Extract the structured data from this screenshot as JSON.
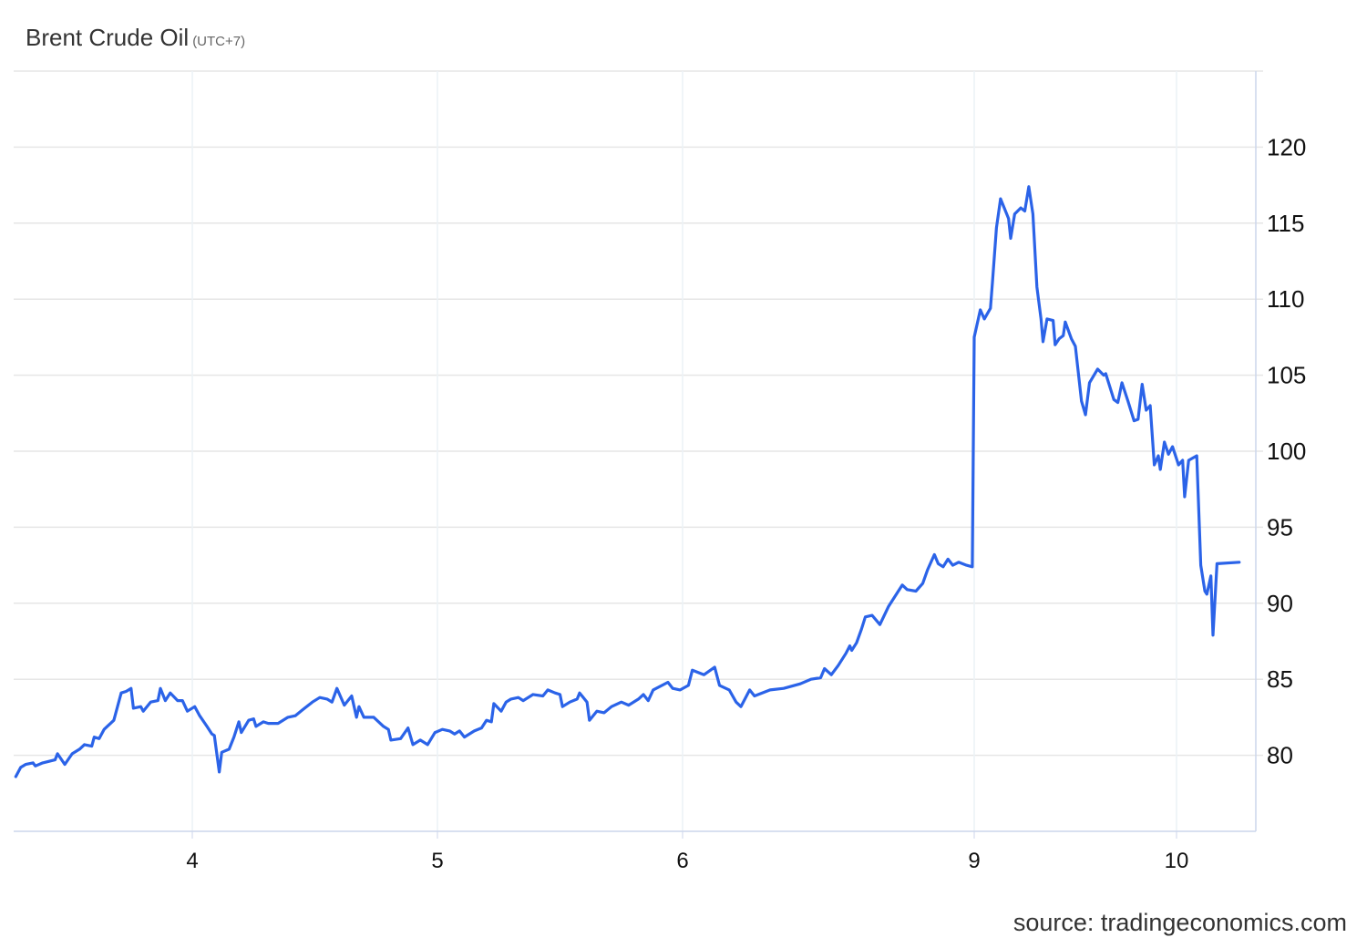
{
  "chart_data": {
    "type": "line",
    "title": "Brent Crude Oil",
    "subtitle": "(UTC+7)",
    "source": "source: tradingeconomics.com",
    "xlabel": "",
    "ylabel": "",
    "ylim": [
      75,
      125
    ],
    "y_ticks": [
      80,
      85,
      90,
      95,
      100,
      105,
      110,
      115,
      120
    ],
    "x_ticks": [
      {
        "label": "4",
        "value": 4
      },
      {
        "label": "5",
        "value": 5
      },
      {
        "label": "6",
        "value": 6
      },
      {
        "label": "9",
        "value": 9
      },
      {
        "label": "10",
        "value": 10
      }
    ],
    "grid": true,
    "y_axis_position": "right",
    "line_color": "#2b63e8",
    "series": [
      {
        "points": [
          [
            3.28,
            78.6
          ],
          [
            3.3,
            79.2
          ],
          [
            3.32,
            79.4
          ],
          [
            3.35,
            79.5
          ],
          [
            3.36,
            79.3
          ],
          [
            3.39,
            79.5
          ],
          [
            3.44,
            79.7
          ],
          [
            3.45,
            80.1
          ],
          [
            3.48,
            79.4
          ],
          [
            3.51,
            80.1
          ],
          [
            3.54,
            80.4
          ],
          [
            3.56,
            80.7
          ],
          [
            3.59,
            80.6
          ],
          [
            3.6,
            81.2
          ],
          [
            3.62,
            81.1
          ],
          [
            3.64,
            81.7
          ],
          [
            3.68,
            82.3
          ],
          [
            3.71,
            84.1
          ],
          [
            3.73,
            84.2
          ],
          [
            3.75,
            84.4
          ],
          [
            3.76,
            83.1
          ],
          [
            3.79,
            83.2
          ],
          [
            3.8,
            82.9
          ],
          [
            3.83,
            83.5
          ],
          [
            3.86,
            83.6
          ],
          [
            3.87,
            84.4
          ],
          [
            3.89,
            83.6
          ],
          [
            3.91,
            84.1
          ],
          [
            3.94,
            83.6
          ],
          [
            3.96,
            83.6
          ],
          [
            3.98,
            82.9
          ],
          [
            4.01,
            83.2
          ],
          [
            4.03,
            82.6
          ],
          [
            4.06,
            81.9
          ],
          [
            4.08,
            81.4
          ],
          [
            4.09,
            81.3
          ],
          [
            4.11,
            78.9
          ],
          [
            4.12,
            80.2
          ],
          [
            4.15,
            80.4
          ],
          [
            4.17,
            81.2
          ],
          [
            4.19,
            82.2
          ],
          [
            4.2,
            81.5
          ],
          [
            4.23,
            82.3
          ],
          [
            4.25,
            82.4
          ],
          [
            4.26,
            81.9
          ],
          [
            4.29,
            82.2
          ],
          [
            4.31,
            82.1
          ],
          [
            4.35,
            82.1
          ],
          [
            4.39,
            82.5
          ],
          [
            4.42,
            82.6
          ],
          [
            4.45,
            83.0
          ],
          [
            4.49,
            83.5
          ],
          [
            4.52,
            83.8
          ],
          [
            4.55,
            83.7
          ],
          [
            4.57,
            83.5
          ],
          [
            4.59,
            84.4
          ],
          [
            4.62,
            83.3
          ],
          [
            4.65,
            83.9
          ],
          [
            4.67,
            82.5
          ],
          [
            4.68,
            83.2
          ],
          [
            4.7,
            82.5
          ],
          [
            4.74,
            82.5
          ],
          [
            4.78,
            81.9
          ],
          [
            4.8,
            81.7
          ],
          [
            4.81,
            81.0
          ],
          [
            4.85,
            81.1
          ],
          [
            4.88,
            81.8
          ],
          [
            4.9,
            80.7
          ],
          [
            4.93,
            81.0
          ],
          [
            4.96,
            80.7
          ],
          [
            4.99,
            81.5
          ],
          [
            5.02,
            81.7
          ],
          [
            5.05,
            81.6
          ],
          [
            5.07,
            81.4
          ],
          [
            5.09,
            81.6
          ],
          [
            5.11,
            81.2
          ],
          [
            5.15,
            81.6
          ],
          [
            5.18,
            81.8
          ],
          [
            5.2,
            82.3
          ],
          [
            5.22,
            82.2
          ],
          [
            5.23,
            83.4
          ],
          [
            5.26,
            82.9
          ],
          [
            5.28,
            83.5
          ],
          [
            5.3,
            83.7
          ],
          [
            5.33,
            83.8
          ],
          [
            5.35,
            83.6
          ],
          [
            5.39,
            84.0
          ],
          [
            5.43,
            83.9
          ],
          [
            5.45,
            84.3
          ],
          [
            5.48,
            84.1
          ],
          [
            5.5,
            84.0
          ],
          [
            5.51,
            83.2
          ],
          [
            5.54,
            83.5
          ],
          [
            5.57,
            83.7
          ],
          [
            5.58,
            84.1
          ],
          [
            5.61,
            83.5
          ],
          [
            5.62,
            82.3
          ],
          [
            5.65,
            82.9
          ],
          [
            5.68,
            82.8
          ],
          [
            5.71,
            83.2
          ],
          [
            5.75,
            83.5
          ],
          [
            5.78,
            83.3
          ],
          [
            5.82,
            83.7
          ],
          [
            5.84,
            84.0
          ],
          [
            5.86,
            83.6
          ],
          [
            5.88,
            84.3
          ],
          [
            5.94,
            84.8
          ],
          [
            5.96,
            84.4
          ],
          [
            5.99,
            84.3
          ],
          [
            6.06,
            84.6
          ],
          [
            6.1,
            85.6
          ],
          [
            6.22,
            85.3
          ],
          [
            6.33,
            85.8
          ],
          [
            6.38,
            84.6
          ],
          [
            6.48,
            84.3
          ],
          [
            6.55,
            83.5
          ],
          [
            6.6,
            83.2
          ],
          [
            6.69,
            84.3
          ],
          [
            6.74,
            83.9
          ],
          [
            6.9,
            84.3
          ],
          [
            7.04,
            84.4
          ],
          [
            7.21,
            84.7
          ],
          [
            7.32,
            85.0
          ],
          [
            7.42,
            85.1
          ],
          [
            7.46,
            85.7
          ],
          [
            7.53,
            85.3
          ],
          [
            7.6,
            85.9
          ],
          [
            7.68,
            86.7
          ],
          [
            7.72,
            87.2
          ],
          [
            7.74,
            86.9
          ],
          [
            7.79,
            87.4
          ],
          [
            7.84,
            88.3
          ],
          [
            7.88,
            89.1
          ],
          [
            7.95,
            89.2
          ],
          [
            8.03,
            88.6
          ],
          [
            8.12,
            89.8
          ],
          [
            8.21,
            90.7
          ],
          [
            8.26,
            91.2
          ],
          [
            8.31,
            90.9
          ],
          [
            8.4,
            90.8
          ],
          [
            8.47,
            91.3
          ],
          [
            8.52,
            92.2
          ],
          [
            8.59,
            93.2
          ],
          [
            8.63,
            92.6
          ],
          [
            8.68,
            92.4
          ],
          [
            8.73,
            92.9
          ],
          [
            8.78,
            92.5
          ],
          [
            8.84,
            92.7
          ],
          [
            8.92,
            92.5
          ],
          [
            8.98,
            92.4
          ],
          [
            9.0,
            107.5
          ],
          [
            9.03,
            109.3
          ],
          [
            9.05,
            108.7
          ],
          [
            9.08,
            109.4
          ],
          [
            9.09,
            111.1
          ],
          [
            9.11,
            114.7
          ],
          [
            9.13,
            116.6
          ],
          [
            9.17,
            115.3
          ],
          [
            9.18,
            114.0
          ],
          [
            9.2,
            115.6
          ],
          [
            9.23,
            116.0
          ],
          [
            9.25,
            115.8
          ],
          [
            9.27,
            117.4
          ],
          [
            9.29,
            115.6
          ],
          [
            9.31,
            110.8
          ],
          [
            9.33,
            108.7
          ],
          [
            9.34,
            107.2
          ],
          [
            9.36,
            108.7
          ],
          [
            9.39,
            108.6
          ],
          [
            9.4,
            107.0
          ],
          [
            9.42,
            107.4
          ],
          [
            9.44,
            107.6
          ],
          [
            9.45,
            108.5
          ],
          [
            9.48,
            107.4
          ],
          [
            9.5,
            106.9
          ],
          [
            9.53,
            103.3
          ],
          [
            9.55,
            102.4
          ],
          [
            9.57,
            104.5
          ],
          [
            9.61,
            105.4
          ],
          [
            9.64,
            105.0
          ],
          [
            9.65,
            105.1
          ],
          [
            9.69,
            103.4
          ],
          [
            9.71,
            103.2
          ],
          [
            9.73,
            104.5
          ],
          [
            9.76,
            103.3
          ],
          [
            9.79,
            102.0
          ],
          [
            9.81,
            102.1
          ],
          [
            9.83,
            104.4
          ],
          [
            9.85,
            102.7
          ],
          [
            9.87,
            103.0
          ],
          [
            9.89,
            99.1
          ],
          [
            9.91,
            99.7
          ],
          [
            9.92,
            98.8
          ],
          [
            9.94,
            100.6
          ],
          [
            9.96,
            99.8
          ],
          [
            9.98,
            100.3
          ],
          [
            10.01,
            99.1
          ],
          [
            10.03,
            99.4
          ],
          [
            10.04,
            97.0
          ],
          [
            10.06,
            99.4
          ],
          [
            10.1,
            99.7
          ],
          [
            10.12,
            92.5
          ],
          [
            10.14,
            90.8
          ],
          [
            10.15,
            90.6
          ],
          [
            10.17,
            91.8
          ],
          [
            10.18,
            87.9
          ],
          [
            10.2,
            92.6
          ],
          [
            10.31,
            92.7
          ]
        ]
      }
    ]
  }
}
